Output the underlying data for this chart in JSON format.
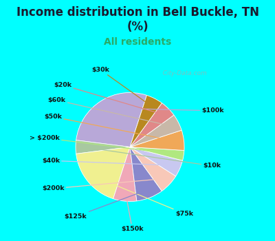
{
  "title": "Income distribution in Bell Buckle, TN\n(%)",
  "subtitle": "All residents",
  "background_color": "#00FFFF",
  "chart_bg_start": "#f0faf0",
  "chart_bg_end": "#d0eee8",
  "labels": [
    "$100k",
    "$10k",
    "$75k",
    "$150k",
    "$125k",
    "$200k",
    "$40k",
    "> $200k",
    "$50k",
    "$60k",
    "$20k",
    "$30k"
  ],
  "sizes": [
    28,
    4,
    18,
    7,
    8,
    6,
    5,
    3,
    6,
    5,
    5,
    5
  ],
  "colors": [
    "#b8a8d8",
    "#a8c8a0",
    "#f0f090",
    "#f0a8b8",
    "#8888cc",
    "#f8c8b8",
    "#c8c8f0",
    "#b0e880",
    "#f0a858",
    "#c8b8a8",
    "#e08888",
    "#b88820"
  ],
  "title_fontsize": 12,
  "subtitle_fontsize": 10,
  "subtitle_color": "#2aaa66",
  "title_color": "#1a1a2e",
  "startangle": 72,
  "watermark": "  City-Data.com"
}
